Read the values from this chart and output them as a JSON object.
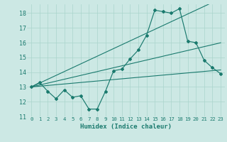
{
  "xlabel": "Humidex (Indice chaleur)",
  "bg_color": "#cce8e4",
  "line_color": "#1a7a6e",
  "grid_color": "#aad4cc",
  "xlim": [
    -0.5,
    23.5
  ],
  "ylim": [
    11,
    18.6
  ],
  "xticks": [
    0,
    1,
    2,
    3,
    4,
    5,
    6,
    7,
    8,
    9,
    10,
    11,
    12,
    13,
    14,
    15,
    16,
    17,
    18,
    19,
    20,
    21,
    22,
    23
  ],
  "yticks": [
    11,
    12,
    13,
    14,
    15,
    16,
    17,
    18
  ],
  "main_series": [
    13.0,
    13.3,
    12.7,
    12.2,
    12.8,
    12.3,
    12.4,
    11.5,
    11.5,
    12.7,
    14.1,
    14.2,
    14.9,
    15.5,
    16.5,
    18.2,
    18.1,
    18.0,
    18.3,
    16.1,
    16.0,
    14.8,
    14.3,
    13.9
  ],
  "line1": [
    13.0,
    13.05,
    13.1,
    13.15,
    13.2,
    13.25,
    13.3,
    13.35,
    13.4,
    13.45,
    13.5,
    13.55,
    13.6,
    13.65,
    13.7,
    13.75,
    13.8,
    13.85,
    13.9,
    13.95,
    14.0,
    14.05,
    14.1,
    14.15
  ],
  "line2": [
    13.0,
    13.13,
    13.26,
    13.39,
    13.52,
    13.65,
    13.78,
    13.91,
    14.04,
    14.17,
    14.3,
    14.43,
    14.56,
    14.69,
    14.82,
    14.95,
    15.08,
    15.21,
    15.34,
    15.47,
    15.6,
    15.73,
    15.86,
    15.99
  ],
  "line3": [
    13.0,
    13.26,
    13.52,
    13.78,
    14.04,
    14.3,
    14.56,
    14.82,
    15.08,
    15.34,
    15.6,
    15.86,
    16.12,
    16.38,
    16.64,
    16.9,
    17.16,
    17.42,
    17.68,
    17.94,
    18.2,
    18.46,
    18.72,
    18.98
  ]
}
